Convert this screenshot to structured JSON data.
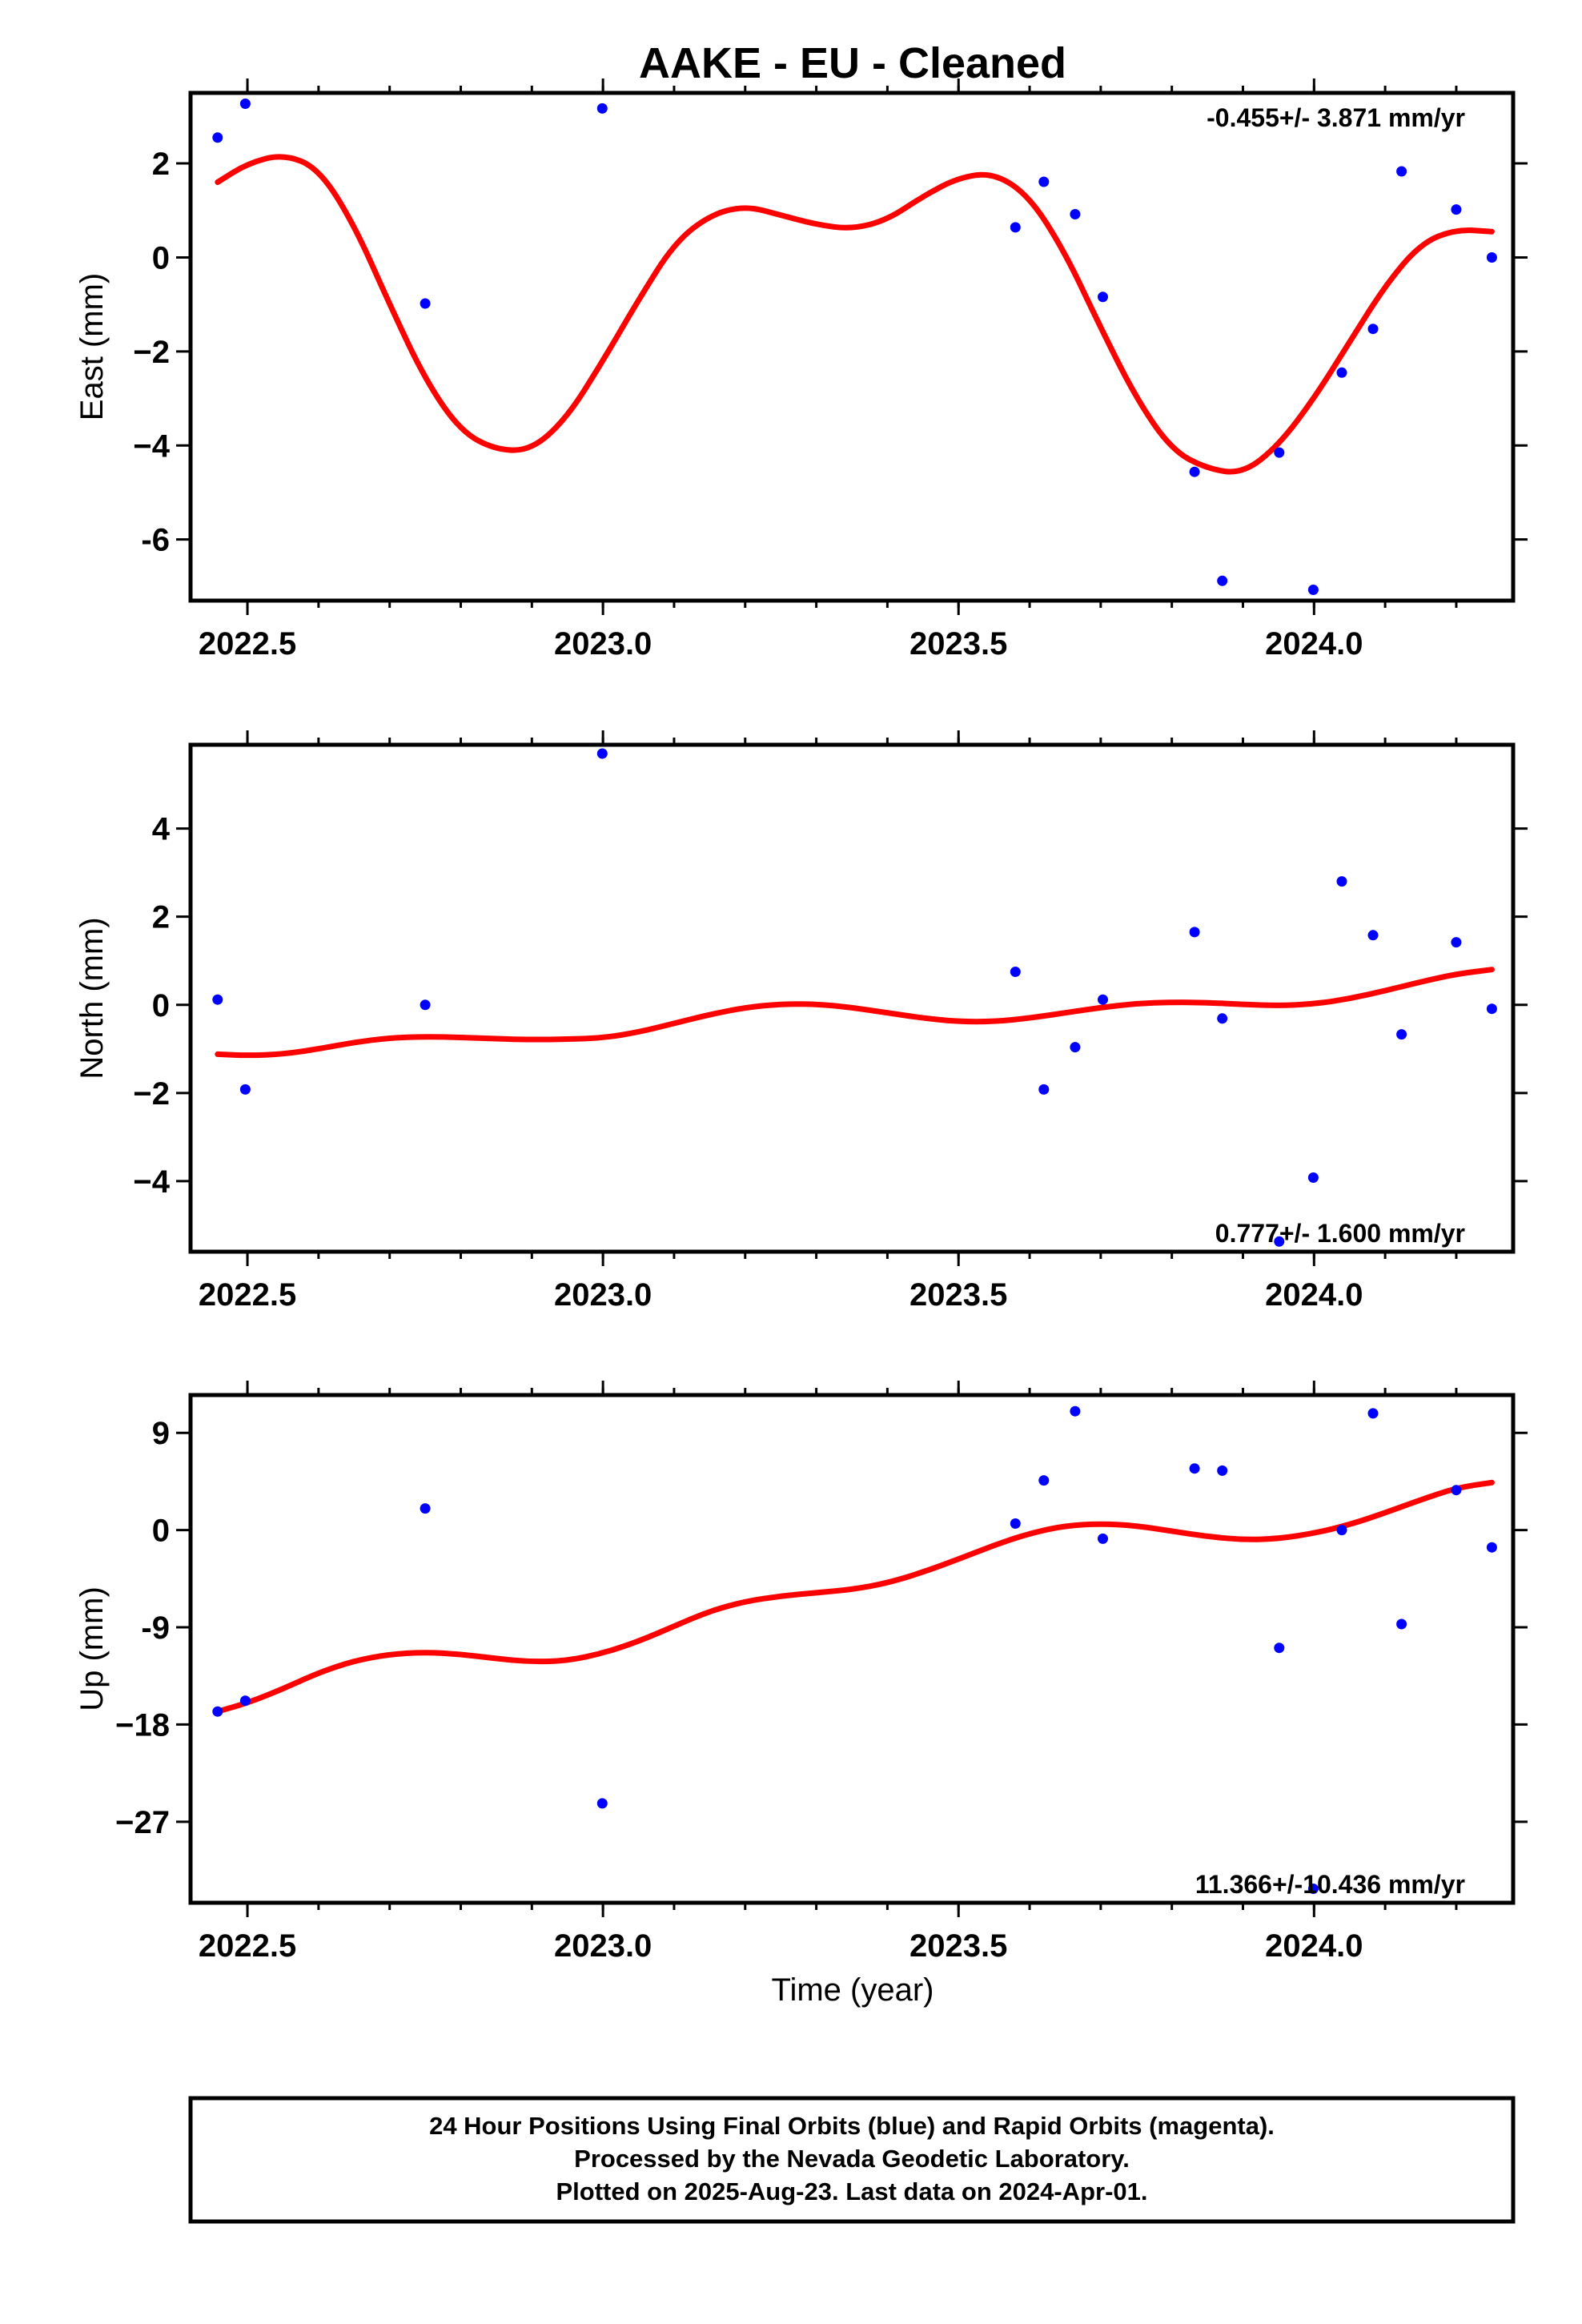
{
  "figure_title": "AAKE  - EU - Cleaned",
  "x_axis_label": "Time (year)",
  "colors": {
    "points": "#0000ff",
    "trend": "#ff0000",
    "frame": "#000000"
  },
  "chart_data": [
    {
      "type": "scatter",
      "name": "east",
      "ylabel": "East (mm)",
      "rate_text": "-0.455+/- 3.871 mm/yr",
      "rate_position": "top-right",
      "xlim": [
        2022.42,
        2024.28
      ],
      "ylim": [
        -7.3,
        3.5
      ],
      "x_ticks": [
        2022.5,
        2023.0,
        2023.5,
        2024.0
      ],
      "x_tick_labels": [
        "2022.5",
        "2023.0",
        "2023.5",
        "2024.0"
      ],
      "y_ticks": [
        2,
        0,
        -2,
        -4,
        -6
      ],
      "y_tick_labels": [
        "2",
        "0",
        "−2",
        "−4",
        "-6"
      ],
      "points": {
        "x": [
          2022.458,
          2022.497,
          2022.75,
          2022.999,
          2023.58,
          2023.62,
          2023.664,
          2023.703,
          2023.832,
          2023.871,
          2023.951,
          2023.999,
          2024.039,
          2024.083,
          2024.123,
          2024.2,
          2024.25
        ],
        "y": [
          2.55,
          3.27,
          -0.98,
          3.17,
          0.64,
          1.61,
          0.92,
          -0.84,
          -4.56,
          -6.88,
          -4.15,
          -7.07,
          -2.45,
          -1.52,
          1.83,
          1.02,
          0.0
        ]
      },
      "trend": {
        "x": [
          2022.458,
          2022.5,
          2022.55,
          2022.6,
          2022.65,
          2022.7,
          2022.75,
          2022.8,
          2022.85,
          2022.9,
          2022.95,
          2023.0,
          2023.05,
          2023.1,
          2023.15,
          2023.2,
          2023.25,
          2023.3,
          2023.35,
          2023.4,
          2023.45,
          2023.5,
          2023.55,
          2023.6,
          2023.65,
          2023.7,
          2023.75,
          2023.8,
          2023.85,
          2023.9,
          2023.95,
          2024.0,
          2024.05,
          2024.1,
          2024.15,
          2024.2,
          2024.25
        ],
        "y": [
          1.6,
          2.0,
          2.2,
          1.9,
          0.7,
          -1.0,
          -2.6,
          -3.7,
          -4.1,
          -4.1,
          -3.4,
          -2.2,
          -0.9,
          0.3,
          0.9,
          1.1,
          0.9,
          0.7,
          0.6,
          0.8,
          1.3,
          1.7,
          1.8,
          1.3,
          0.1,
          -1.5,
          -3.0,
          -4.1,
          -4.5,
          -4.6,
          -4.0,
          -3.0,
          -1.8,
          -0.6,
          0.3,
          0.6,
          0.55
        ]
      }
    },
    {
      "type": "scatter",
      "name": "north",
      "ylabel": "North (mm)",
      "rate_text": "0.777+/- 1.600 mm/yr",
      "rate_position": "bottom-right",
      "xlim": [
        2022.42,
        2024.28
      ],
      "ylim": [
        -5.6,
        5.9
      ],
      "x_ticks": [
        2022.5,
        2023.0,
        2023.5,
        2024.0
      ],
      "x_tick_labels": [
        "2022.5",
        "2023.0",
        "2023.5",
        "2024.0"
      ],
      "y_ticks": [
        4,
        2,
        0,
        -2,
        -4
      ],
      "y_tick_labels": [
        "4",
        "2",
        "0",
        "−2",
        "−4"
      ],
      "points": {
        "x": [
          2022.458,
          2022.497,
          2022.75,
          2022.999,
          2023.58,
          2023.62,
          2023.664,
          2023.703,
          2023.832,
          2023.871,
          2023.951,
          2023.999,
          2024.039,
          2024.083,
          2024.123,
          2024.2,
          2024.25
        ],
        "y": [
          0.12,
          -1.92,
          0.0,
          5.7,
          0.75,
          -1.92,
          -0.96,
          0.12,
          1.65,
          -0.31,
          -5.37,
          -3.92,
          2.8,
          1.58,
          -0.67,
          1.42,
          -0.09
        ]
      },
      "trend": {
        "x": [
          2022.458,
          2022.5,
          2022.55,
          2022.6,
          2022.65,
          2022.7,
          2022.75,
          2022.8,
          2022.85,
          2022.9,
          2022.95,
          2023.0,
          2023.05,
          2023.1,
          2023.15,
          2023.2,
          2023.25,
          2023.3,
          2023.35,
          2023.4,
          2023.45,
          2023.5,
          2023.55,
          2023.6,
          2023.65,
          2023.7,
          2023.75,
          2023.8,
          2023.85,
          2023.9,
          2023.95,
          2024.0,
          2024.05,
          2024.1,
          2024.15,
          2024.2,
          2024.25
        ],
        "y": [
          -1.12,
          -1.15,
          -1.12,
          -1.0,
          -0.85,
          -0.75,
          -0.72,
          -0.74,
          -0.77,
          -0.79,
          -0.78,
          -0.75,
          -0.62,
          -0.42,
          -0.22,
          -0.06,
          0.02,
          0.02,
          -0.06,
          -0.18,
          -0.3,
          -0.38,
          -0.38,
          -0.3,
          -0.18,
          -0.06,
          0.03,
          0.06,
          0.05,
          0.01,
          -0.02,
          0.02,
          0.14,
          0.32,
          0.52,
          0.7,
          0.8
        ]
      }
    },
    {
      "type": "scatter",
      "name": "up",
      "ylabel": "Up (mm)",
      "rate_text": "11.366+/-10.436 mm/yr",
      "rate_position": "bottom-right",
      "xlim": [
        2022.42,
        2024.28
      ],
      "ylim": [
        -34.5,
        12.5
      ],
      "x_ticks": [
        2022.5,
        2023.0,
        2023.5,
        2024.0
      ],
      "x_tick_labels": [
        "2022.5",
        "2023.0",
        "2023.5",
        "2024.0"
      ],
      "y_ticks": [
        9,
        0,
        -9,
        -18,
        -27
      ],
      "y_tick_labels": [
        "9",
        "0",
        "-9",
        "−18",
        "−27"
      ],
      "points": {
        "x": [
          2022.458,
          2022.497,
          2022.75,
          2022.999,
          2023.58,
          2023.62,
          2023.664,
          2023.703,
          2023.832,
          2023.871,
          2023.951,
          2023.999,
          2024.039,
          2024.083,
          2024.123,
          2024.2,
          2024.25
        ],
        "y": [
          -16.8,
          -15.8,
          2.0,
          -25.3,
          0.6,
          4.6,
          11.0,
          -0.8,
          5.7,
          5.5,
          -10.9,
          -33.2,
          0.0,
          10.8,
          -8.7,
          3.7,
          -1.6
        ]
      },
      "trend": {
        "x": [
          2022.458,
          2022.5,
          2022.55,
          2022.6,
          2022.65,
          2022.7,
          2022.75,
          2022.8,
          2022.85,
          2022.9,
          2022.95,
          2023.0,
          2023.05,
          2023.1,
          2023.15,
          2023.2,
          2023.25,
          2023.3,
          2023.35,
          2023.4,
          2023.45,
          2023.5,
          2023.55,
          2023.6,
          2023.65,
          2023.7,
          2023.75,
          2023.8,
          2023.85,
          2023.9,
          2023.95,
          2024.0,
          2024.05,
          2024.1,
          2024.15,
          2024.2,
          2024.25
        ],
        "y": [
          -16.8,
          -16.0,
          -14.7,
          -13.2,
          -12.1,
          -11.5,
          -11.3,
          -11.5,
          -11.9,
          -12.2,
          -12.1,
          -11.4,
          -10.3,
          -8.9,
          -7.5,
          -6.6,
          -6.1,
          -5.8,
          -5.5,
          -4.9,
          -3.9,
          -2.7,
          -1.4,
          -0.3,
          0.4,
          0.6,
          0.4,
          -0.1,
          -0.6,
          -0.9,
          -0.8,
          -0.3,
          0.5,
          1.6,
          2.8,
          3.9,
          4.4
        ]
      }
    }
  ],
  "footer": {
    "line1": "24 Hour Positions Using Final Orbits (blue) and Rapid Orbits (magenta).",
    "line2": "Processed by the Nevada Geodetic Laboratory.",
    "line3": "Plotted on 2025-Aug-23. Last data on 2024-Apr-01."
  }
}
